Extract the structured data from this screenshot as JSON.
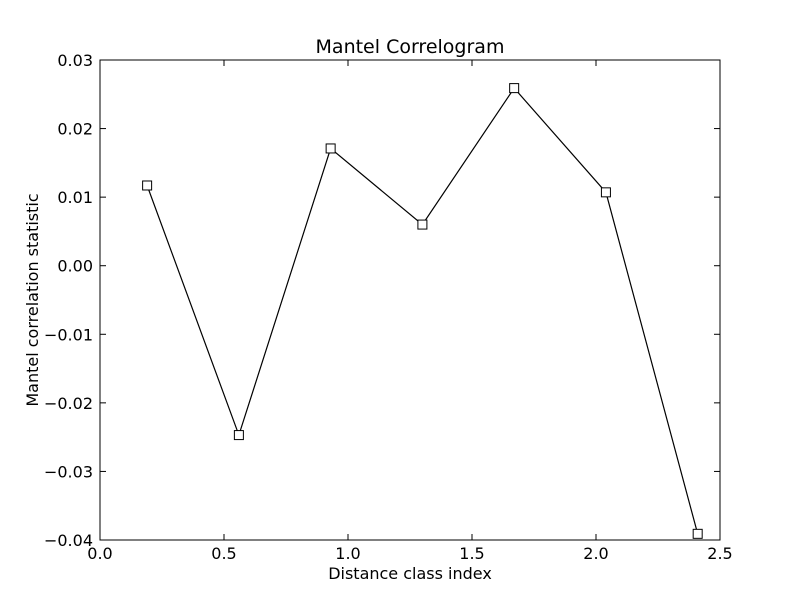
{
  "chart_data": {
    "type": "line",
    "title": "Mantel Correlogram",
    "xlabel": "Distance class index",
    "ylabel": "Mantel correlation statistic",
    "xlim": [
      0.0,
      2.5
    ],
    "ylim": [
      -0.04,
      0.03
    ],
    "xticks": [
      "0.0",
      "0.5",
      "1.0",
      "1.5",
      "2.0",
      "2.5"
    ],
    "xtick_values": [
      0.0,
      0.5,
      1.0,
      1.5,
      2.0,
      2.5
    ],
    "yticks": [
      "0.03",
      "0.02",
      "0.01",
      "0.00",
      "−0.01",
      "−0.02",
      "−0.03",
      "−0.04"
    ],
    "ytick_values": [
      0.03,
      0.02,
      0.01,
      0.0,
      -0.01,
      -0.02,
      -0.03,
      -0.04
    ],
    "grid": false,
    "series": [
      {
        "marker": "square",
        "line_color": "#000000",
        "marker_fill": "#ffffff",
        "x": [
          0.19,
          0.56,
          0.93,
          1.3,
          1.67,
          2.04,
          2.41
        ],
        "y": [
          0.0117,
          -0.0247,
          0.0171,
          0.006,
          0.0259,
          0.0107,
          -0.0391
        ]
      }
    ]
  }
}
